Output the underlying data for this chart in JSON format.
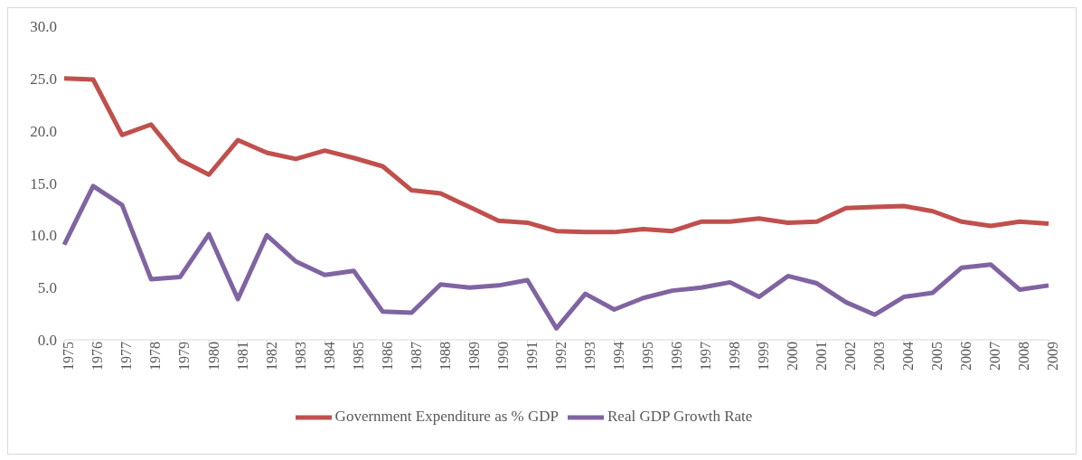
{
  "chart_data": {
    "type": "line",
    "categories": [
      "1975",
      "1976",
      "1977",
      "1978",
      "1979",
      "1980",
      "1981",
      "1982",
      "1983",
      "1984",
      "1985",
      "1986",
      "1987",
      "1988",
      "1989",
      "1990",
      "1991",
      "1992",
      "1993",
      "1994",
      "1995",
      "1996",
      "1997",
      "1998",
      "1999",
      "2000",
      "2001",
      "2002",
      "2003",
      "2004",
      "2005",
      "2006",
      "2007",
      "2008",
      "2009"
    ],
    "series": [
      {
        "name": "Government Expenditure as % GDP",
        "color": "#c0504d",
        "values": [
          25.0,
          24.9,
          19.6,
          20.6,
          17.2,
          15.8,
          19.1,
          17.9,
          17.3,
          18.1,
          17.4,
          16.6,
          14.3,
          14.0,
          12.7,
          11.4,
          11.2,
          10.4,
          10.3,
          10.3,
          10.6,
          10.4,
          11.3,
          11.3,
          11.6,
          11.2,
          11.3,
          12.6,
          12.7,
          12.8,
          12.3,
          11.3,
          10.9,
          11.3,
          11.1
        ]
      },
      {
        "name": "Real GDP Growth Rate",
        "color": "#8064a2",
        "values": [
          9.1,
          14.7,
          12.9,
          5.8,
          6.0,
          10.1,
          3.9,
          10.0,
          7.5,
          6.2,
          6.6,
          2.7,
          2.6,
          5.3,
          5.0,
          5.2,
          5.7,
          1.1,
          4.4,
          2.9,
          4.0,
          4.7,
          5.0,
          5.5,
          4.1,
          6.1,
          5.4,
          3.6,
          2.4,
          4.1,
          4.5,
          6.9,
          7.2,
          4.8,
          5.2
        ]
      }
    ],
    "ylim": [
      0,
      30
    ],
    "yticks": [
      {
        "value": 0,
        "label": "0.0"
      },
      {
        "value": 5,
        "label": "5.0"
      },
      {
        "value": 10,
        "label": "10.0"
      },
      {
        "value": 15,
        "label": "15.0"
      },
      {
        "value": 20,
        "label": "20.0"
      },
      {
        "value": 25,
        "label": "25.0"
      },
      {
        "value": 30,
        "label": "30.0"
      }
    ],
    "grid": false,
    "legend": "bottom",
    "marker": "none",
    "line_style": "solid"
  }
}
